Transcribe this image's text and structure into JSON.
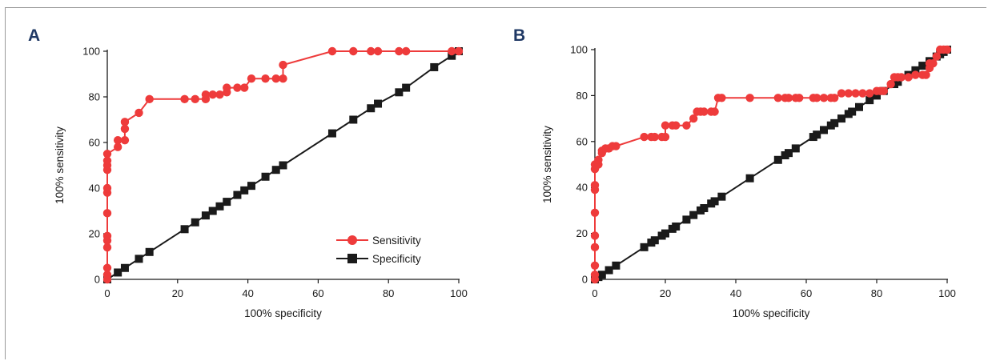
{
  "colors": {
    "sensitivity": "#ee3b3b",
    "specificity": "#1a1a1a",
    "panel_label": "#1f3864"
  },
  "chart_data": [
    {
      "panel": "A",
      "type": "line",
      "xlabel": "100% specificity",
      "ylabel": "100% sensitivity",
      "xlim": [
        0,
        100
      ],
      "ylim": [
        0,
        100
      ],
      "xticks": [
        0,
        20,
        40,
        60,
        80,
        100
      ],
      "yticks": [
        0,
        20,
        40,
        60,
        80,
        100
      ],
      "grid": false,
      "legend": {
        "placement": "bottom-right",
        "entries": [
          "Sensitivity",
          "Specificity"
        ]
      },
      "series": [
        {
          "name": "Sensitivity",
          "marker": "circle",
          "x": [
            0,
            0,
            0,
            0,
            0,
            0,
            0,
            0,
            0,
            0,
            0,
            0,
            0,
            3,
            3,
            5,
            5,
            5,
            9,
            12,
            22,
            25,
            28,
            28,
            30,
            32,
            34,
            34,
            37,
            39,
            41,
            45,
            48,
            50,
            50,
            64,
            70,
            75,
            77,
            83,
            85,
            98,
            100
          ],
          "y": [
            0,
            2,
            5,
            14,
            17,
            19,
            29,
            38,
            40,
            48,
            50,
            52,
            55,
            58,
            61,
            61,
            66,
            69,
            73,
            79,
            79,
            79,
            79,
            81,
            81,
            81,
            82,
            84,
            84,
            84,
            88,
            88,
            88,
            88,
            94,
            100,
            100,
            100,
            100,
            100,
            100,
            100,
            100
          ]
        },
        {
          "name": "Specificity",
          "marker": "square",
          "x": [
            0,
            3,
            5,
            9,
            12,
            22,
            25,
            28,
            30,
            32,
            34,
            37,
            39,
            41,
            45,
            48,
            50,
            64,
            70,
            75,
            77,
            83,
            85,
            93,
            98,
            100
          ],
          "y": [
            0,
            3,
            5,
            9,
            12,
            22,
            25,
            28,
            30,
            32,
            34,
            37,
            39,
            41,
            45,
            48,
            50,
            64,
            70,
            75,
            77,
            82,
            84,
            93,
            98,
            100
          ]
        }
      ]
    },
    {
      "panel": "B",
      "type": "line",
      "xlabel": "100% specificity",
      "ylabel": "100% sensitivity",
      "xlim": [
        0,
        100
      ],
      "ylim": [
        0,
        100
      ],
      "xticks": [
        0,
        20,
        40,
        60,
        80,
        100
      ],
      "yticks": [
        0,
        20,
        40,
        60,
        80,
        100
      ],
      "grid": false,
      "legend": null,
      "series": [
        {
          "name": "Sensitivity",
          "marker": "circle",
          "x": [
            0,
            0,
            0,
            0,
            0,
            0,
            0,
            0,
            0,
            0,
            1,
            1,
            2,
            2,
            3,
            4,
            5,
            6,
            14,
            16,
            17,
            19,
            20,
            20,
            22,
            23,
            26,
            28,
            29,
            30,
            31,
            33,
            34,
            35,
            36,
            44,
            52,
            54,
            55,
            57,
            58,
            62,
            63,
            65,
            67,
            68,
            70,
            72,
            74,
            76,
            78,
            80,
            81,
            82,
            84,
            85,
            86,
            87,
            89,
            91,
            93,
            94,
            95,
            95,
            96,
            97,
            98,
            99,
            100
          ],
          "y": [
            0,
            2,
            6,
            14,
            19,
            29,
            39,
            41,
            48,
            50,
            50,
            52,
            55,
            56,
            57,
            57,
            58,
            58,
            62,
            62,
            62,
            62,
            62,
            67,
            67,
            67,
            67,
            70,
            73,
            73,
            73,
            73,
            73,
            79,
            79,
            79,
            79,
            79,
            79,
            79,
            79,
            79,
            79,
            79,
            79,
            79,
            81,
            81,
            81,
            81,
            81,
            82,
            82,
            82,
            85,
            88,
            88,
            88,
            88,
            89,
            89,
            89,
            92,
            94,
            94,
            97,
            100,
            100,
            100
          ]
        },
        {
          "name": "Specificity",
          "marker": "square",
          "x": [
            0,
            1,
            2,
            4,
            6,
            14,
            16,
            17,
            19,
            20,
            22,
            23,
            26,
            28,
            30,
            31,
            33,
            34,
            36,
            44,
            52,
            54,
            55,
            57,
            62,
            63,
            65,
            67,
            68,
            70,
            72,
            73,
            75,
            78,
            80,
            82,
            85,
            86,
            89,
            91,
            93,
            95,
            97,
            98,
            99,
            100
          ],
          "y": [
            0,
            1,
            2,
            4,
            6,
            14,
            16,
            17,
            19,
            20,
            22,
            23,
            26,
            28,
            30,
            31,
            33,
            34,
            36,
            44,
            52,
            54,
            55,
            57,
            62,
            63,
            65,
            67,
            68,
            70,
            72,
            73,
            75,
            78,
            80,
            82,
            85,
            86,
            89,
            91,
            93,
            95,
            97,
            98,
            99,
            100
          ]
        }
      ]
    }
  ]
}
